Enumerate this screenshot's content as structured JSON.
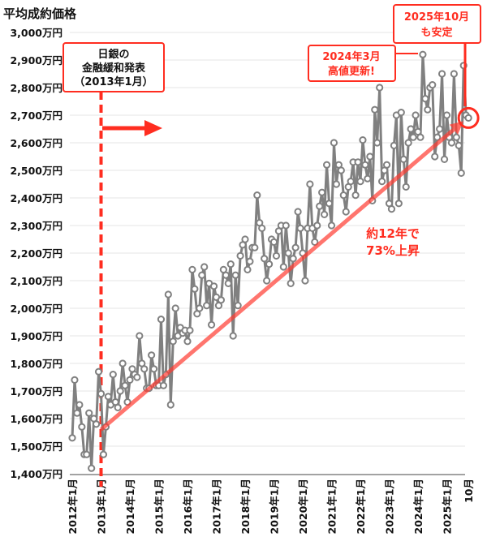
{
  "chart_data": {
    "type": "line",
    "title": "平均成約価格",
    "ylabel": "平均成約価格",
    "xlabel": "",
    "ylim": [
      1400,
      3000
    ],
    "y_ticks": [
      "1,400万円",
      "1,500万円",
      "1,600万円",
      "1,700万円",
      "1,800万円",
      "1,900万円",
      "2,000万円",
      "2,100万円",
      "2,200万円",
      "2,300万円",
      "2,400万円",
      "2,500万円",
      "2,600万円",
      "2,700万円",
      "2,800万円",
      "2,900万円",
      "3,000万円"
    ],
    "x_ticks": [
      "2012年1月",
      "2013年1月",
      "2014年1月",
      "2015年1月",
      "2016年1月",
      "2017年1月",
      "2018年1月",
      "2019年1月",
      "2020年1月",
      "2021年1月",
      "2022年1月",
      "2023年1月",
      "2024年1月",
      "2025年1月",
      "10月"
    ],
    "x_start": "2012-01",
    "x_end": "2025-10",
    "grid": true,
    "series": [
      {
        "name": "平均成約価格（万円）",
        "color": "#808080",
        "values": [
          1530,
          1740,
          1620,
          1650,
          1570,
          1470,
          1470,
          1620,
          1420,
          1600,
          1580,
          1770,
          1690,
          1470,
          1570,
          1680,
          1650,
          1760,
          1660,
          1640,
          1700,
          1800,
          1720,
          1660,
          1740,
          1780,
          1760,
          1750,
          1900,
          1800,
          1780,
          1710,
          1710,
          1830,
          1780,
          1720,
          1720,
          1960,
          1720,
          1760,
          2050,
          1650,
          1880,
          2000,
          1900,
          1930,
          1910,
          1920,
          1880,
          1920,
          2140,
          2070,
          1980,
          2000,
          2120,
          2150,
          2010,
          2090,
          1940,
          2080,
          2040,
          2010,
          2030,
          2140,
          2120,
          2090,
          2160,
          1900,
          2120,
          2010,
          2190,
          2230,
          2250,
          2140,
          2170,
          2220,
          2220,
          2410,
          2310,
          2290,
          2180,
          2100,
          2160,
          2250,
          2240,
          2190,
          2280,
          2300,
          2150,
          2300,
          2200,
          2090,
          2180,
          2220,
          2350,
          2290,
          2200,
          2100,
          2290,
          2450,
          2290,
          2240,
          2300,
          2370,
          2420,
          2340,
          2520,
          2380,
          2300,
          2600,
          2450,
          2520,
          2500,
          2410,
          2350,
          2440,
          2460,
          2530,
          2410,
          2530,
          2460,
          2610,
          2520,
          2470,
          2550,
          2390,
          2720,
          2600,
          2800,
          2460,
          2500,
          2520,
          2380,
          2360,
          2590,
          2700,
          2380,
          2710,
          2540,
          2440,
          2600,
          2650,
          2620,
          2700,
          2640,
          2620,
          2920,
          2760,
          2720,
          2800,
          2810,
          2550,
          2620,
          2650,
          2850,
          2540,
          2700,
          2620,
          2600,
          2850,
          2620,
          2590,
          2490,
          2880,
          2700,
          2690
        ]
      }
    ],
    "trend": {
      "from_month_index": 12,
      "from_value": 1560,
      "to_month_index": 165,
      "to_value": 2690,
      "color": "#ff3b30"
    },
    "annotations": {
      "boj": {
        "line1": "日銀の",
        "line2": "金融緩和発表",
        "line3": "（2013年1月）",
        "month_index": 12
      },
      "peak": {
        "line1": "2024年3月",
        "line2": "高値更新!",
        "month_index": 146
      },
      "latest": {
        "line1": "2025年10月",
        "line2": "も安定",
        "month_index": 165
      },
      "growth": {
        "line1": "約12年で",
        "line2": "73%上昇"
      }
    },
    "accent_color": "#ff2d20"
  }
}
